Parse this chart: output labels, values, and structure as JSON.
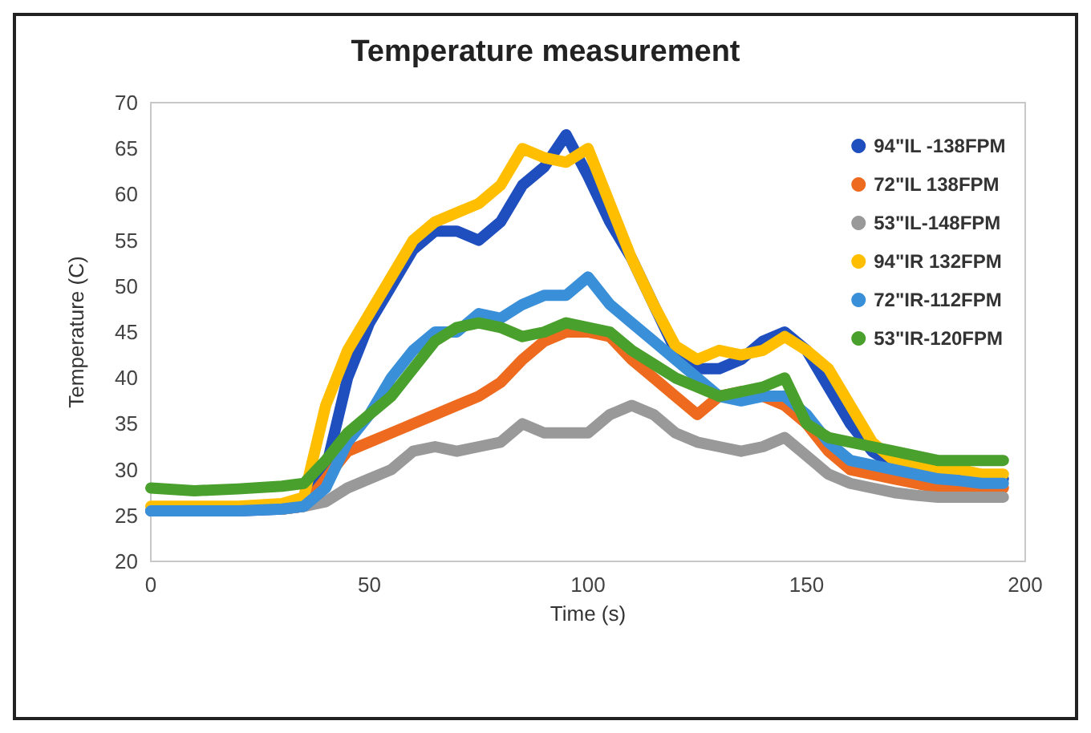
{
  "chart_data": {
    "type": "line",
    "title": "Temperature measurement",
    "xlabel": "Time (s)",
    "ylabel": "Temperature (C)",
    "x": [
      0,
      10,
      20,
      30,
      35,
      40,
      45,
      50,
      55,
      60,
      65,
      70,
      75,
      80,
      85,
      90,
      95,
      100,
      105,
      110,
      115,
      120,
      125,
      130,
      135,
      140,
      145,
      150,
      155,
      160,
      165,
      170,
      175,
      180,
      185,
      190,
      195
    ],
    "series": [
      {
        "name": "94\"IL -138FPM",
        "color": "#1f4fbf",
        "values": [
          25.5,
          25.5,
          25.5,
          25.7,
          26,
          30,
          40,
          46,
          50,
          54,
          56,
          56,
          55,
          57,
          61,
          63,
          66.5,
          62,
          57,
          53,
          48,
          43,
          41,
          41,
          42,
          44,
          45,
          43,
          39,
          35,
          32,
          30.5,
          30,
          29.5,
          29.5,
          29,
          29
        ]
      },
      {
        "name": "72\"IL 138FPM",
        "color": "#ed6a1e",
        "values": [
          null,
          null,
          null,
          25.7,
          26,
          29,
          32,
          33,
          34,
          35,
          36,
          37,
          38,
          39.5,
          42,
          44,
          45,
          45,
          44.5,
          42,
          40,
          38,
          36,
          38,
          38.5,
          38,
          37,
          35,
          32,
          30,
          29.5,
          29,
          28.5,
          28,
          28,
          28,
          28
        ]
      },
      {
        "name": "53\"IL-148FPM",
        "color": "#999999",
        "values": [
          null,
          null,
          null,
          25.7,
          26,
          26.5,
          28,
          29,
          30,
          32,
          32.5,
          32,
          32.5,
          33,
          35,
          34,
          34,
          34,
          36,
          37,
          36,
          34,
          33,
          32.5,
          32,
          32.5,
          33.5,
          31.5,
          29.5,
          28.5,
          28,
          27.5,
          27.2,
          27,
          27,
          27,
          27
        ]
      },
      {
        "name": "94\"IR 132FPM",
        "color": "#ffbf00",
        "values": [
          26,
          26,
          26,
          26.3,
          27,
          37,
          43,
          47,
          51,
          55,
          57,
          58,
          59,
          61,
          65,
          64,
          63.5,
          65,
          59,
          53,
          48,
          43.5,
          42,
          43,
          42.5,
          43,
          44.5,
          43,
          41,
          37,
          33,
          31,
          30.5,
          30,
          30,
          29.5,
          29.5
        ]
      },
      {
        "name": "72\"IR-112FPM",
        "color": "#3a8fd9",
        "values": [
          25.5,
          25.5,
          25.5,
          25.7,
          26,
          28,
          33,
          36,
          40,
          43,
          45,
          45,
          47,
          46.5,
          48,
          49,
          49,
          51,
          48,
          46,
          44,
          42,
          40,
          38,
          37.5,
          38,
          38,
          36,
          33,
          31,
          30.5,
          30,
          29.5,
          29,
          28.8,
          28.5,
          28.5
        ]
      },
      {
        "name": "53\"IR-120FPM",
        "color": "#4aa02c",
        "values": [
          28,
          27.7,
          27.9,
          28.2,
          28.5,
          31,
          34,
          36,
          38,
          41,
          44,
          45.5,
          46,
          45.5,
          44.5,
          45,
          46,
          45.5,
          45,
          43,
          41.5,
          40,
          39,
          38,
          38.5,
          39,
          40,
          35,
          33.5,
          33,
          32.5,
          32,
          31.5,
          31,
          31,
          31,
          31
        ]
      }
    ],
    "xlim": [
      0,
      200
    ],
    "xticks": [
      0,
      50,
      100,
      150,
      200
    ],
    "ylim": [
      20,
      70
    ],
    "yticks": [
      20,
      25,
      30,
      35,
      40,
      45,
      50,
      55,
      60,
      65,
      70
    ],
    "grid": false,
    "legend": "top right",
    "marker": "none",
    "line_style": "solid"
  }
}
